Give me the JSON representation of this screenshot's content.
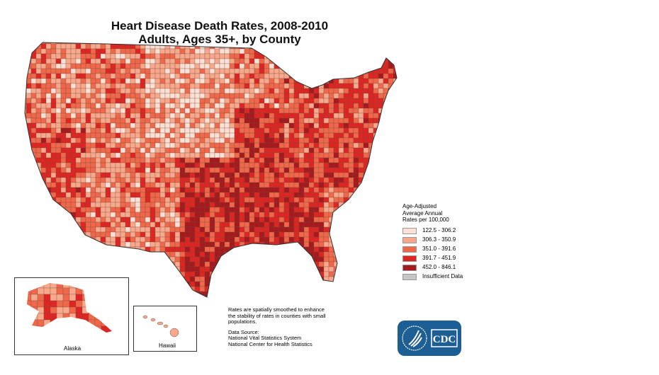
{
  "title": {
    "line1": "Heart Disease Death Rates, 2008-2010",
    "line2": "Adults, Ages 35+, by County"
  },
  "legend": {
    "heading": [
      "Age-Adjusted",
      "Average Annual",
      "Rates per 100,000"
    ],
    "classes": [
      {
        "label": "122.5 - 306.2",
        "color": "#fde1d5"
      },
      {
        "label": "306.3 - 350.9",
        "color": "#f8a98b"
      },
      {
        "label": "351.0 - 391.6",
        "color": "#f0684a"
      },
      {
        "label": "391.7 - 451.9",
        "color": "#dd2521"
      },
      {
        "label": "452.0 - 846.1",
        "color": "#a41a1d"
      },
      {
        "label": "Insufficient Data",
        "color": "#c6c6c6"
      }
    ]
  },
  "insets": {
    "alaska": "Alaska",
    "hawaii": "Hawaii"
  },
  "notes": {
    "smoothing": "Rates are spatially smoothed to enhance the stability of rates in counties with small populations.",
    "source_heading": "Data Source:",
    "source_lines": [
      "National Vital Statistics System",
      "National Center for Health Statistics"
    ]
  },
  "logo": {
    "text": "CDC",
    "color": "#1d5e94"
  }
}
